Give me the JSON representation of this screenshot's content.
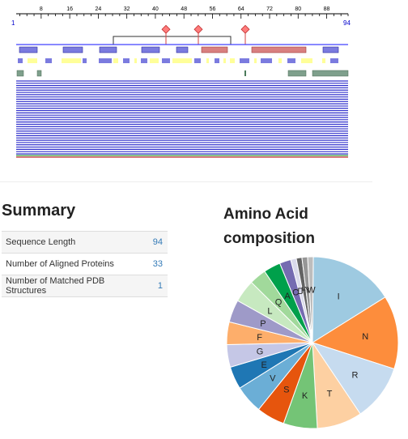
{
  "ruler": {
    "start": "1",
    "end": "94",
    "ticks": [
      "8",
      "16",
      "24",
      "32",
      "40",
      "48",
      "56",
      "64",
      "72",
      "80",
      "88"
    ]
  },
  "summary": {
    "title": "Summary",
    "rows": [
      {
        "label": "Sequence Length",
        "value": "94"
      },
      {
        "label": "Number of Aligned Proteins",
        "value": "33"
      },
      {
        "label": "Number of Matched PDB Structures",
        "value": "1"
      }
    ]
  },
  "composition": {
    "title": "Amino Acid composition",
    "chart_data": {
      "type": "pie",
      "title": "Amino Acid composition",
      "slices": [
        {
          "label": "I",
          "value": 15,
          "color": "#9ecae1"
        },
        {
          "label": "N",
          "value": 13,
          "color": "#fd8d3c"
        },
        {
          "label": "R",
          "value": 10,
          "color": "#c6dbef"
        },
        {
          "label": "T",
          "value": 8,
          "color": "#fdd0a2"
        },
        {
          "label": "K",
          "value": 6,
          "color": "#74c476"
        },
        {
          "label": "S",
          "value": 5,
          "color": "#e6550d"
        },
        {
          "label": "V",
          "value": 5,
          "color": "#6baed6"
        },
        {
          "label": "E",
          "value": 4,
          "color": "#1f77b4"
        },
        {
          "label": "G",
          "value": 4,
          "color": "#c5c7e6"
        },
        {
          "label": "F",
          "value": 4,
          "color": "#fdae6b"
        },
        {
          "label": "P",
          "value": 4,
          "color": "#9e9ac8"
        },
        {
          "label": "L",
          "value": 4,
          "color": "#c7e9c0"
        },
        {
          "label": "Q",
          "value": 3,
          "color": "#a1d99b"
        },
        {
          "label": "A",
          "value": 3,
          "color": "#00a04b"
        },
        {
          "label": "C",
          "value": 2,
          "color": "#756bb1"
        },
        {
          "label": "D",
          "value": 1,
          "color": "#dadaeb"
        },
        {
          "label": "H",
          "value": 1,
          "color": "#636363"
        },
        {
          "label": "Y",
          "value": 1,
          "color": "#969696"
        },
        {
          "label": "W",
          "value": 1,
          "color": "#bdbdbd"
        }
      ]
    }
  },
  "colors": {
    "domain": "#7b7bdf",
    "disorder": "#ffff99",
    "region": "#d98080",
    "pdb": "#7fa08c",
    "alignment": "#3030cc",
    "site": "#ff7b7b"
  }
}
